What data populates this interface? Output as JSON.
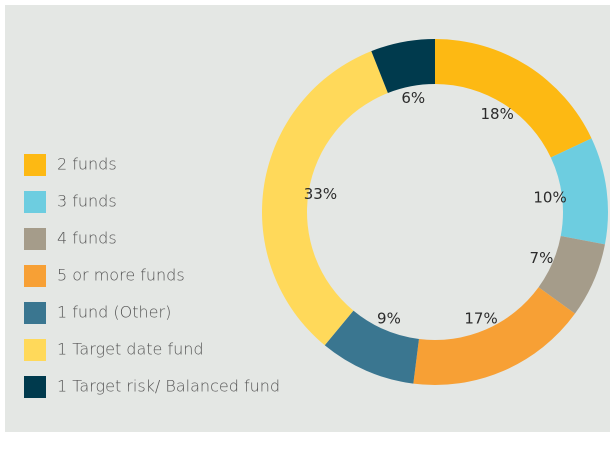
{
  "chart_data": {
    "type": "donut",
    "categories": [
      "2 funds",
      "3 funds",
      "4 funds",
      "5 or more funds",
      "1 fund (Other)",
      "1 Target date fund",
      "1 Target risk/ Balanced fund"
    ],
    "values": [
      18,
      10,
      7,
      17,
      9,
      33,
      6
    ],
    "colors": [
      "#fdb913",
      "#6dcde0",
      "#a59c8a",
      "#f7a035",
      "#3a7690",
      "#ffd95a",
      "#003a4d"
    ],
    "legend": "left"
  }
}
